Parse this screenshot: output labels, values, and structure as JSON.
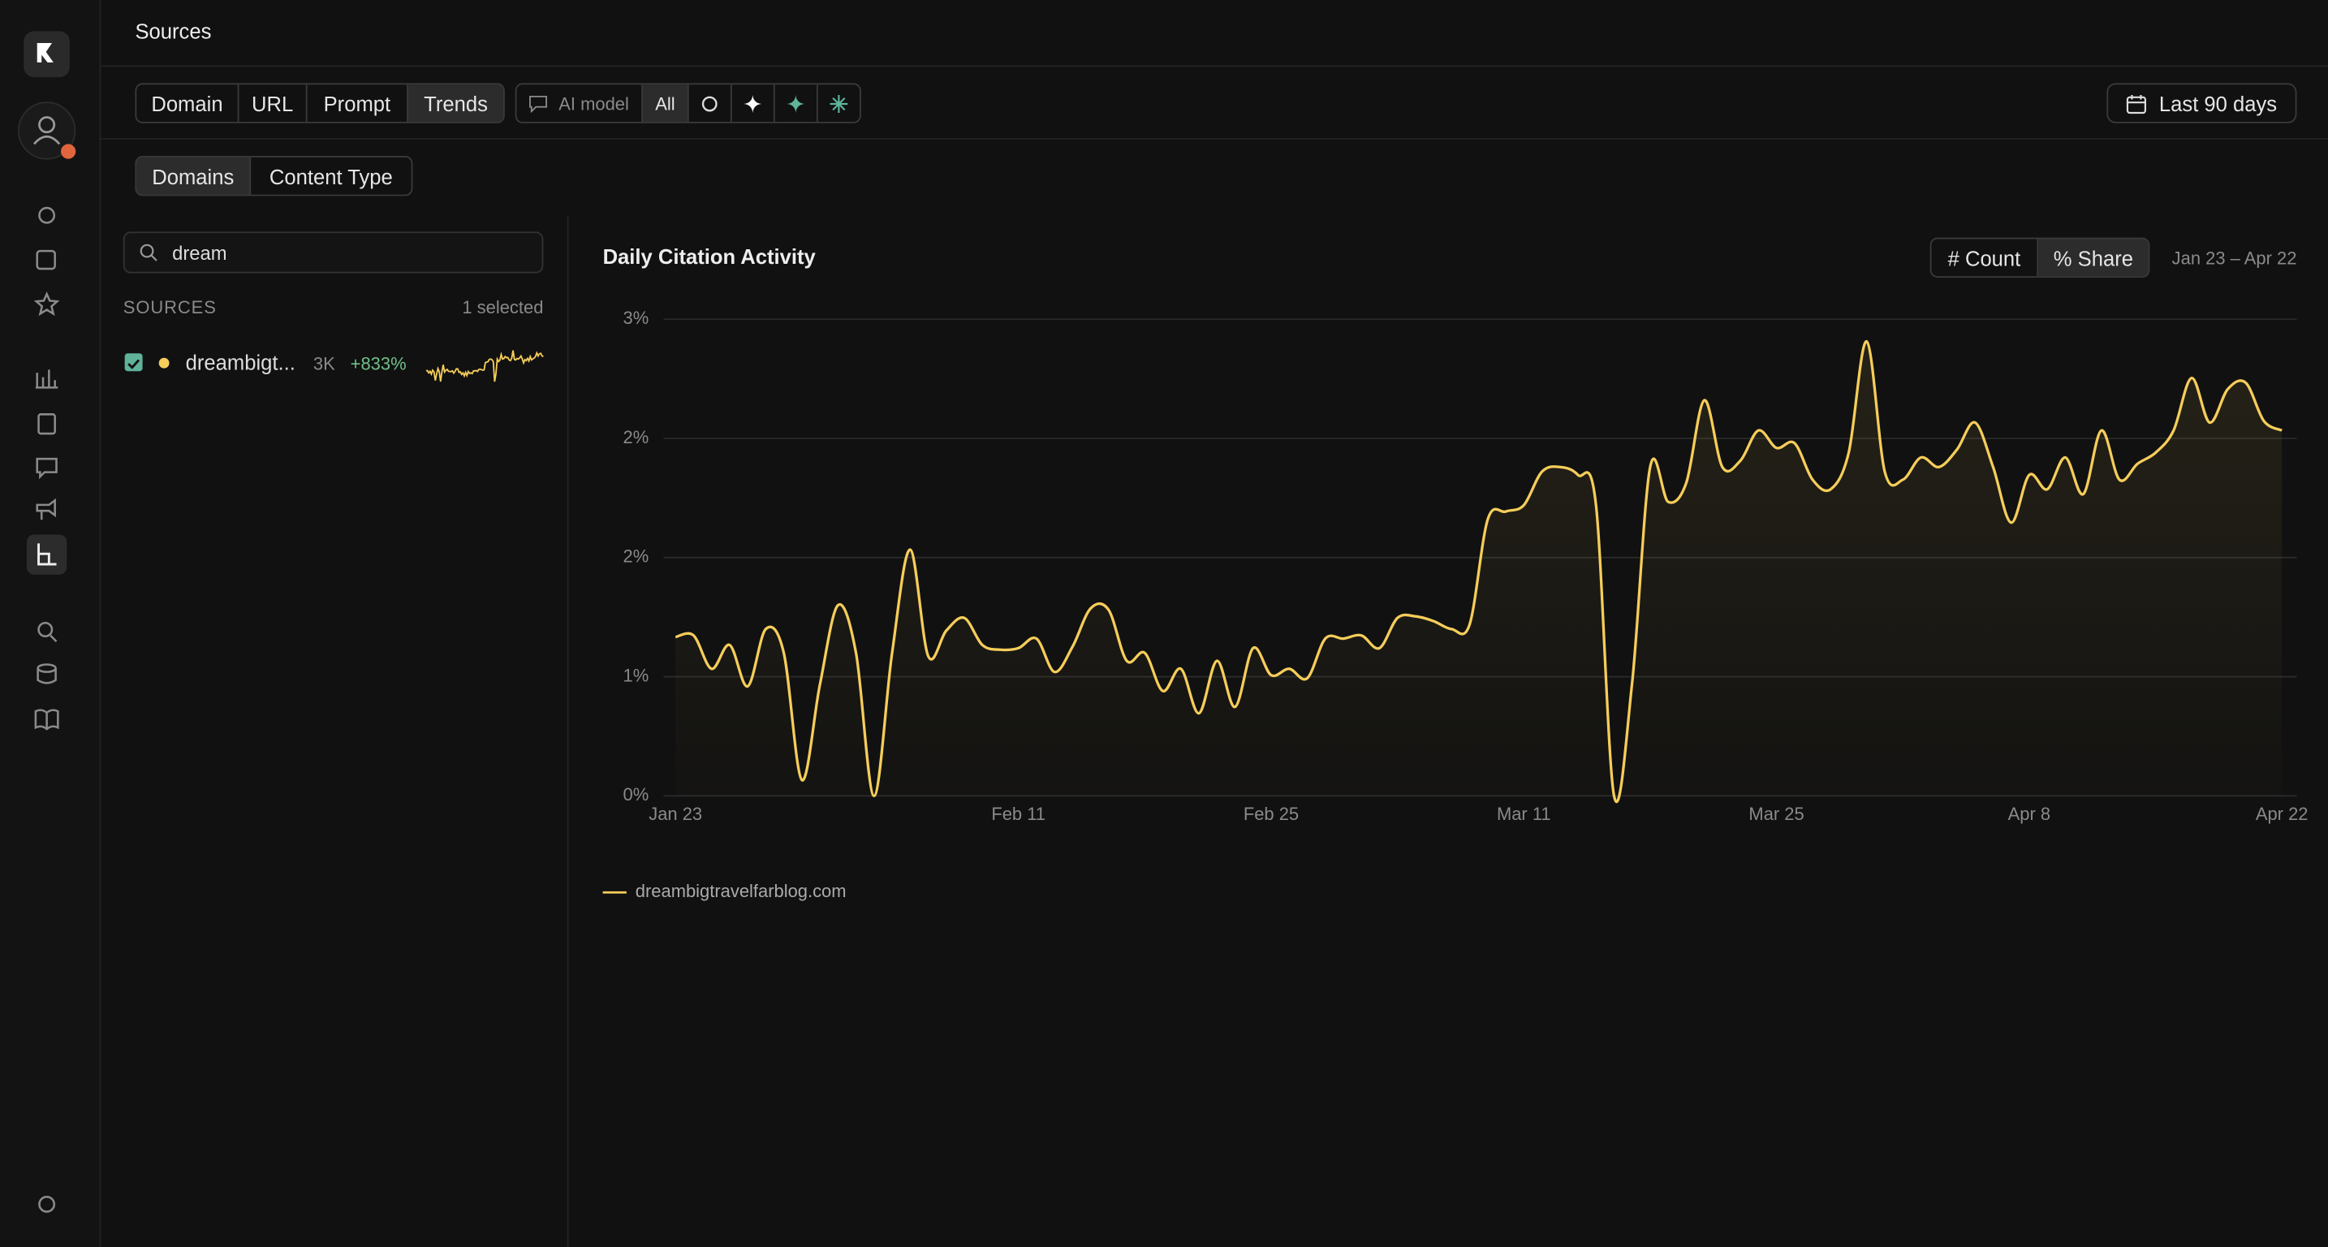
{
  "header": {
    "title": "Sources"
  },
  "tabs": [
    "Domain",
    "URL",
    "Prompt",
    "Trends"
  ],
  "ai_model": {
    "label": "AI model",
    "options": [
      "All"
    ]
  },
  "date_range": "Last 90 days",
  "subtabs": [
    "Domains",
    "Content Type"
  ],
  "search": {
    "value": "dream"
  },
  "sources": {
    "heading": "SOURCES",
    "selected": "1 selected",
    "items": [
      {
        "name": "dreambigt...",
        "count": "3K",
        "change": "+833%"
      }
    ]
  },
  "chart_controls": {
    "count": "# Count",
    "share": "% Share",
    "range": "Jan 23 – Apr 22"
  },
  "chart_data": {
    "type": "line",
    "title": "Daily Citation Activity",
    "categories": [
      "Jan 23",
      null,
      null,
      null,
      null,
      null,
      null,
      null,
      null,
      null,
      null,
      null,
      null,
      null,
      null,
      null,
      null,
      null,
      null,
      "Feb 11",
      null,
      null,
      null,
      null,
      null,
      null,
      null,
      null,
      null,
      null,
      null,
      null,
      null,
      "Feb 25",
      null,
      null,
      null,
      null,
      null,
      null,
      null,
      null,
      null,
      null,
      null,
      null,
      null,
      "Mar 11",
      null,
      null,
      null,
      null,
      null,
      null,
      null,
      null,
      null,
      null,
      null,
      null,
      null,
      "Mar 25",
      null,
      null,
      null,
      null,
      null,
      null,
      null,
      null,
      null,
      null,
      null,
      null,
      null,
      "Apr 8",
      null,
      null,
      null,
      null,
      null,
      null,
      null,
      null,
      null,
      null,
      null,
      null,
      null,
      "Apr 22"
    ],
    "series": [
      {
        "name": "dreambigtravelfarblog.com",
        "color": "#f5cd5a",
        "values": [
          1.0,
          1.01,
          0.8,
          0.95,
          0.69,
          1.05,
          0.9,
          0.1,
          0.7,
          1.2,
          0.9,
          0,
          0.9,
          1.55,
          0.88,
          1.04,
          1.12,
          0.95,
          0.92,
          0.93,
          0.99,
          0.78,
          0.94,
          1.18,
          1.17,
          0.85,
          0.9,
          0.66,
          0.8,
          0.52,
          0.85,
          0.56,
          0.93,
          0.76,
          0.8,
          0.74,
          0.99,
          0.99,
          1.01,
          0.93,
          1.12,
          1.13,
          1.1,
          1.05,
          1.08,
          1.74,
          1.79,
          1.83,
          2.04,
          2.07,
          2.02,
          1.83,
          0,
          0.71,
          2.07,
          1.85,
          1.97,
          2.49,
          2.07,
          2.11,
          2.3,
          2.19,
          2.22,
          1.99,
          1.93,
          2.16,
          2.86,
          2.04,
          1.99,
          2.13,
          2.07,
          2.18,
          2.35,
          2.07,
          1.72,
          2.02,
          1.93,
          2.13,
          1.9,
          2.3,
          1.99,
          2.09,
          2.16,
          2.3,
          2.63,
          2.35,
          2.56,
          2.6,
          2.36,
          2.3
        ]
      }
    ],
    "ylim": [
      0,
      3
    ],
    "yticks": [
      {
        "value": 0,
        "label": "0%"
      },
      {
        "value": 0.75,
        "label": "1%"
      },
      {
        "value": 1.5,
        "label": "2%"
      },
      {
        "value": 2.25,
        "label": "2%"
      },
      {
        "value": 3,
        "label": "3%"
      }
    ],
    "grid": true,
    "area": true
  }
}
